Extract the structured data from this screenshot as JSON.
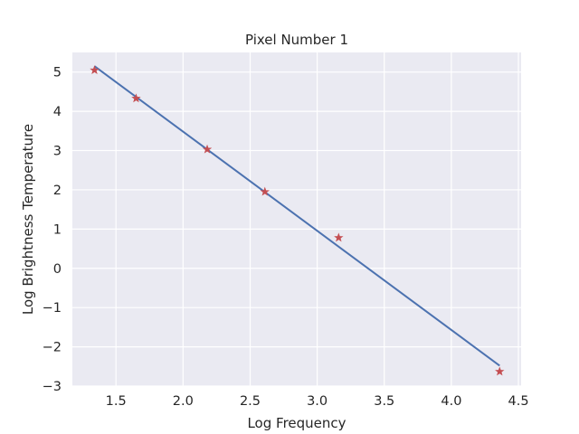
{
  "chart_data": {
    "type": "scatter",
    "title": "Pixel Number 1",
    "xlabel": "Log Frequency",
    "ylabel": "Log Brightness Temperature",
    "xlim": [
      1.175,
      4.52
    ],
    "ylim": [
      -3.0,
      5.5
    ],
    "xticks": [
      1.5,
      2.0,
      2.5,
      3.0,
      3.5,
      4.0,
      4.5
    ],
    "xtick_labels": [
      "1.5",
      "2.0",
      "2.5",
      "3.0",
      "3.5",
      "4.0",
      "4.5"
    ],
    "yticks": [
      -3,
      -2,
      -1,
      0,
      1,
      2,
      3,
      4,
      5
    ],
    "ytick_labels": [
      "−3",
      "−2",
      "−1",
      "0",
      "1",
      "2",
      "3",
      "4",
      "5"
    ],
    "grid": true,
    "background_color": "#eaeaf2",
    "grid_color": "#ffffff",
    "series": [
      {
        "kind": "points",
        "marker": "star",
        "color": "#c44e52",
        "x": [
          1.34,
          1.65,
          2.18,
          2.61,
          3.16,
          4.36
        ],
        "y": [
          5.05,
          4.33,
          3.03,
          1.95,
          0.78,
          -2.63
        ]
      },
      {
        "kind": "fit-line",
        "color": "#4c72b0",
        "x": [
          1.34,
          4.36
        ],
        "y": [
          5.15,
          -2.48
        ]
      }
    ]
  }
}
